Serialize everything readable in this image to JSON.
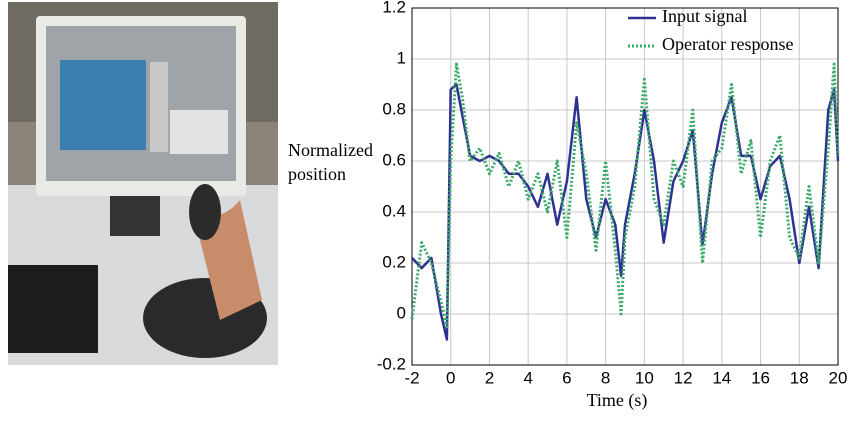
{
  "chart_data": {
    "type": "line",
    "xlabel": "Time (s)",
    "ylabel": "Normalized position",
    "xlim": [
      -2,
      20
    ],
    "ylim": [
      -0.2,
      1.2
    ],
    "xticks": [
      -2,
      0,
      2,
      4,
      6,
      8,
      10,
      12,
      14,
      16,
      18,
      20
    ],
    "yticks": [
      -0.2,
      0,
      0.2,
      0.4,
      0.6,
      0.8,
      1,
      1.2
    ],
    "grid": true,
    "legend": "upper right",
    "x": [
      -2,
      -1.5,
      -1,
      -0.5,
      -0.2,
      0,
      0.3,
      0.6,
      1,
      1.5,
      2,
      2.5,
      3,
      3.5,
      4,
      4.5,
      5,
      5.5,
      6,
      6.5,
      7,
      7.5,
      8,
      8.5,
      8.8,
      9,
      9.5,
      10,
      10.5,
      11,
      11.5,
      12,
      12.5,
      13,
      13.5,
      14,
      14.5,
      15,
      15.5,
      16,
      16.5,
      17,
      17.5,
      18,
      18.5,
      19,
      19.5,
      19.8,
      20
    ],
    "series": [
      {
        "name": "Input signal",
        "color": "#2e3192",
        "dash": "solid",
        "values": [
          0.22,
          0.18,
          0.22,
          0.0,
          -0.1,
          0.88,
          0.9,
          0.78,
          0.62,
          0.6,
          0.62,
          0.6,
          0.55,
          0.55,
          0.5,
          0.42,
          0.55,
          0.35,
          0.52,
          0.85,
          0.45,
          0.3,
          0.45,
          0.35,
          0.15,
          0.35,
          0.55,
          0.8,
          0.6,
          0.28,
          0.52,
          0.6,
          0.72,
          0.27,
          0.55,
          0.75,
          0.85,
          0.62,
          0.62,
          0.45,
          0.58,
          0.62,
          0.45,
          0.2,
          0.42,
          0.18,
          0.8,
          0.88,
          0.6
        ]
      },
      {
        "name": "Operator response",
        "color": "#3aaa6a",
        "dash": "dotted",
        "values": [
          -0.02,
          0.28,
          0.2,
          0.05,
          -0.05,
          0.6,
          0.98,
          0.85,
          0.6,
          0.65,
          0.55,
          0.63,
          0.5,
          0.6,
          0.45,
          0.55,
          0.4,
          0.6,
          0.3,
          0.75,
          0.55,
          0.25,
          0.6,
          0.25,
          0.0,
          0.3,
          0.5,
          0.92,
          0.45,
          0.35,
          0.6,
          0.5,
          0.8,
          0.2,
          0.6,
          0.65,
          0.9,
          0.55,
          0.68,
          0.3,
          0.6,
          0.7,
          0.3,
          0.22,
          0.5,
          0.2,
          0.65,
          0.98,
          0.62
        ]
      }
    ]
  }
}
